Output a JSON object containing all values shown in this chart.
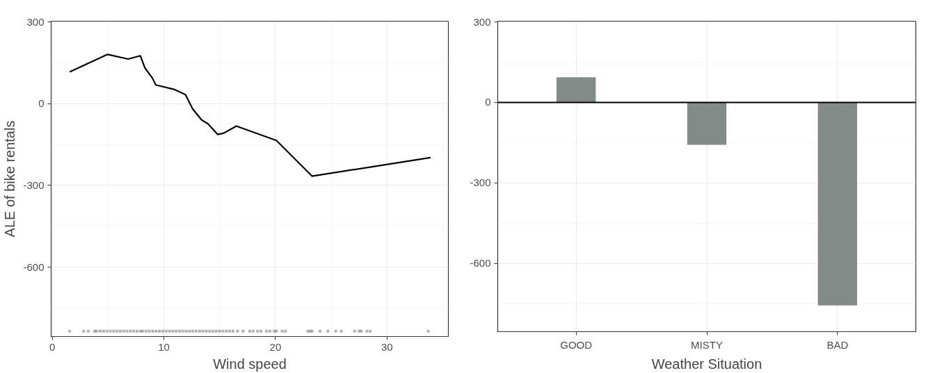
{
  "chart_data": [
    {
      "type": "line",
      "xlabel": "Wind speed",
      "ylabel": "ALE of bike rentals",
      "xlim": [
        -0.1,
        35.5
      ],
      "ylim": [
        -855,
        303
      ],
      "xticks": [
        0,
        10,
        20,
        30
      ],
      "yticks": [
        300,
        0,
        -300,
        -600
      ],
      "grid": true,
      "series": [
        {
          "type": "line",
          "color": "#000000",
          "x": [
            1.56,
            4.96,
            6.8,
            7.9,
            8.3,
            8.96,
            9.28,
            10.96,
            11.94,
            12.58,
            13.39,
            13.96,
            14.82,
            15.38,
            16.5,
            20.09,
            23.28,
            33.9
          ],
          "values": [
            117,
            181,
            164,
            176,
            132,
            95,
            69,
            52,
            33,
            -19,
            -60,
            -74,
            -113,
            -108,
            -82,
            -135,
            -266,
            -198
          ]
        },
        {
          "type": "scatter",
          "marker": "square",
          "color": "#000000",
          "x": [
            1.56,
            2.81,
            3.23,
            3.8,
            4.0,
            4.3,
            4.6,
            4.9,
            5.2,
            5.5,
            5.8,
            6.1,
            6.4,
            6.7,
            7.0,
            7.3,
            7.6,
            7.9,
            8.1,
            8.4,
            8.7,
            9.0,
            9.3,
            9.6,
            9.9,
            10.2,
            10.5,
            10.8,
            11.1,
            11.4,
            11.7,
            12.0,
            12.3,
            12.6,
            12.9,
            13.2,
            13.5,
            13.8,
            14.1,
            14.4,
            14.7,
            15.0,
            15.3,
            15.6,
            15.9,
            16.2,
            16.6,
            17.1,
            17.7,
            18.0,
            18.4,
            18.7,
            19.2,
            19.5,
            19.9,
            20.1,
            20.6,
            20.9,
            22.9,
            23.1,
            23.3,
            24.0,
            24.7,
            25.4,
            25.9,
            27.1,
            27.5,
            27.7,
            28.2,
            28.5,
            33.7
          ],
          "values": [
            -835,
            -835,
            -835,
            -835,
            -835,
            -835,
            -835,
            -835,
            -835,
            -835,
            -835,
            -835,
            -835,
            -835,
            -835,
            -835,
            -835,
            -835,
            -835,
            -835,
            -835,
            -835,
            -835,
            -835,
            -835,
            -835,
            -835,
            -835,
            -835,
            -835,
            -835,
            -835,
            -835,
            -835,
            -835,
            -835,
            -835,
            -835,
            -835,
            -835,
            -835,
            -835,
            -835,
            -835,
            -835,
            -835,
            -835,
            -835,
            -835,
            -835,
            -835,
            -835,
            -835,
            -835,
            -835,
            -835,
            -835,
            -835,
            -835,
            -835,
            -835,
            -835,
            -835,
            -835,
            -835,
            -835,
            -835,
            -835,
            -835,
            -835,
            -835
          ]
        }
      ]
    },
    {
      "type": "bar",
      "xlabel": "Weather Situation",
      "categories": [
        "GOOD",
        "MISTY",
        "BAD"
      ],
      "values": [
        94,
        -158,
        -757
      ],
      "color": "#838b88",
      "ylim": [
        -855,
        303
      ],
      "yticks": [
        300,
        0,
        -300,
        -600
      ],
      "grid": true,
      "ref_lines": [
        {
          "axis": "y",
          "value": 0,
          "color": "#000000"
        }
      ]
    }
  ]
}
